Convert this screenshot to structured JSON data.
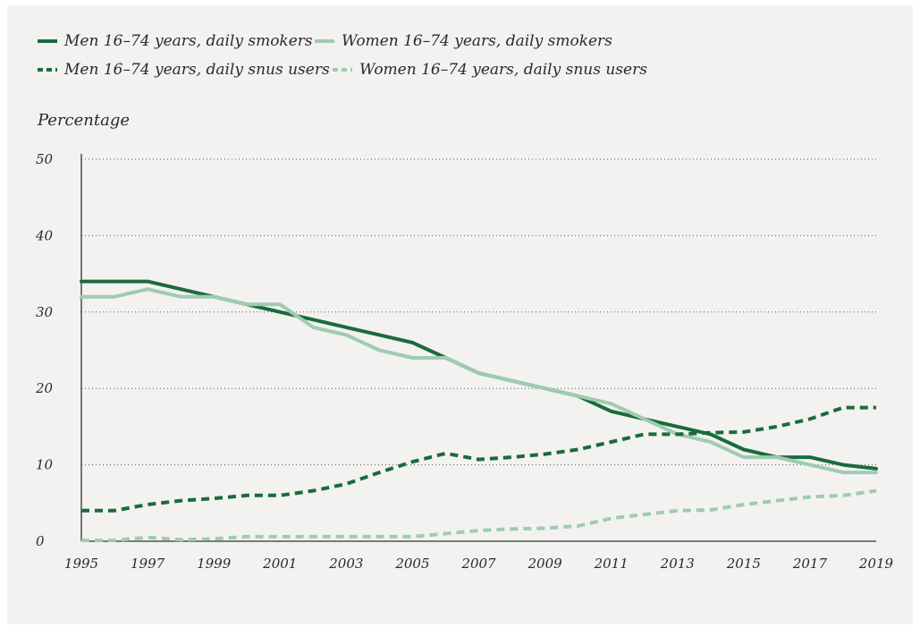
{
  "legend": [
    {
      "label": "Men 16–74 years, daily smokers",
      "color": "#1a6b3c",
      "dashed": false
    },
    {
      "label": "Women 16–74 years, daily smokers",
      "color": "#9fcbb1",
      "dashed": false
    },
    {
      "label": "Men 16–74 years, daily snus users",
      "color": "#1a6b3c",
      "dashed": true
    },
    {
      "label": "Women 16–74 years, daily snus users",
      "color": "#9fcbb1",
      "dashed": true
    }
  ],
  "chart_data": {
    "type": "line",
    "ylabel": "Percentage",
    "xlabel": "",
    "ylim": [
      0,
      50
    ],
    "xlim": [
      1995,
      2019
    ],
    "y_ticks": [
      0,
      10,
      20,
      30,
      40,
      50
    ],
    "x_ticks": [
      1995,
      1997,
      1999,
      2001,
      2003,
      2005,
      2007,
      2009,
      2011,
      2013,
      2015,
      2017,
      2019
    ],
    "grid": "horizontal-dotted",
    "legend_position": "top",
    "x": [
      1995,
      1996,
      1997,
      1998,
      1999,
      2000,
      2001,
      2002,
      2003,
      2004,
      2005,
      2006,
      2007,
      2008,
      2009,
      2010,
      2011,
      2012,
      2013,
      2014,
      2015,
      2016,
      2017,
      2018,
      2019
    ],
    "series": [
      {
        "name": "Men 16–74 years, daily smokers",
        "values": [
          34,
          34,
          34,
          33,
          32,
          31,
          30,
          29,
          28,
          27,
          26,
          24,
          22,
          21,
          20,
          19,
          17,
          16,
          15,
          14,
          12,
          11,
          11,
          10,
          9.5
        ]
      },
      {
        "name": "Women 16–74 years, daily smokers",
        "values": [
          32,
          32,
          33,
          32,
          32,
          31,
          31,
          28,
          27,
          25,
          24,
          24,
          22,
          21,
          20,
          19,
          18,
          16,
          14,
          13,
          11,
          11,
          10,
          9,
          9
        ]
      },
      {
        "name": "Men 16–74 years, daily snus users",
        "values": [
          4,
          4,
          4.8,
          5.3,
          5.6,
          6,
          6,
          6.6,
          7.5,
          9,
          10.4,
          11.5,
          10.7,
          11,
          11.4,
          12,
          13,
          14,
          14,
          14.2,
          14.3,
          15,
          16,
          17.5,
          17.5
        ]
      },
      {
        "name": "Women 16–74 years, daily snus users",
        "values": [
          0.1,
          0.1,
          0.5,
          0.2,
          0.3,
          0.6,
          0.6,
          0.6,
          0.6,
          0.6,
          0.6,
          1,
          1.4,
          1.6,
          1.7,
          2,
          3,
          3.5,
          4,
          4.1,
          4.8,
          5.3,
          5.8,
          6,
          6.6
        ]
      }
    ]
  }
}
